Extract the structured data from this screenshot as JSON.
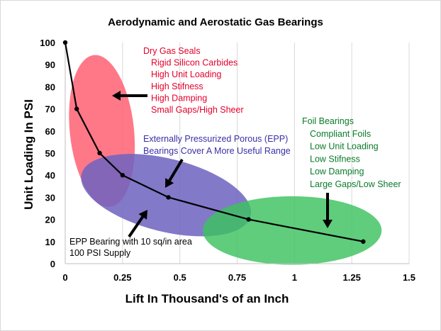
{
  "chart_data": {
    "type": "line",
    "title": "Aerodynamic and Aerostatic Gas Bearings",
    "xlabel": "Lift In Thousand's of an Inch",
    "ylabel": "Unit Loading In PSI",
    "xlim": [
      0,
      1.5
    ],
    "ylim": [
      0,
      100
    ],
    "x_ticks": [
      "0",
      "0.25",
      "0.5",
      "0.75",
      "1",
      "1.25",
      "1.5"
    ],
    "y_ticks": [
      "0",
      "10",
      "20",
      "30",
      "40",
      "50",
      "60",
      "70",
      "80",
      "90",
      "100"
    ],
    "grid": "vertical",
    "series": [
      {
        "x": [
          0,
          0.05,
          0.15,
          0.25,
          0.45,
          0.8,
          1.3
        ],
        "y": [
          100,
          70,
          50,
          40,
          30,
          20,
          10
        ],
        "color": "#000000"
      }
    ],
    "regions": [
      {
        "color": "#ff5a6e",
        "lines": [
          "Dry Gas Seals",
          "Rigid Silicon Carbides",
          "High Unit Loading",
          "High Stifness",
          "High Damping",
          "Small Gaps/High Sheer"
        ],
        "text_color": "#e4002b"
      },
      {
        "color": "#6f63c0",
        "lines": [
          "Externally Pressurized Porous (EPP)",
          "Bearings Cover A More Useful Range"
        ],
        "text_color": "#3b2ea8"
      },
      {
        "color": "#3cc25f",
        "lines": [
          "Foil Bearings",
          "Compliant Foils",
          "Low Unit Loading",
          "Low Stifness",
          "Low Damping",
          "Large Gaps/Low Sheer"
        ],
        "text_color": "#0a7a2a"
      }
    ],
    "note": [
      "EPP Bearing with 10 sq/in area",
      "100 PSI Supply"
    ]
  }
}
